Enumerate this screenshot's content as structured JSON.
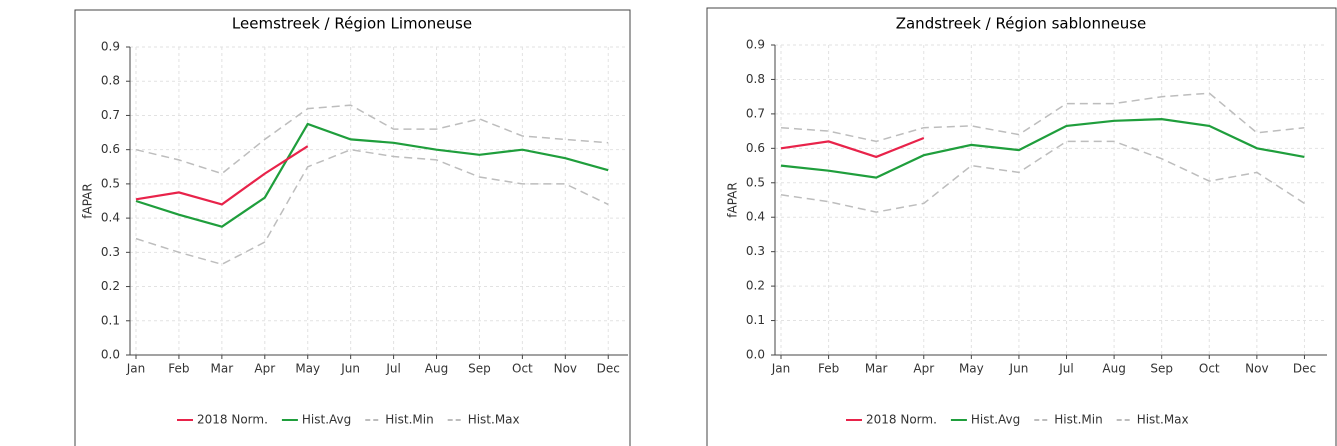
{
  "chart_data": [
    {
      "type": "line",
      "title": "Leemstreek / Région Limoneuse",
      "y_label": "fAPAR",
      "categories": [
        "Jan",
        "Feb",
        "Mar",
        "Apr",
        "May",
        "Jun",
        "Jul",
        "Aug",
        "Sep",
        "Oct",
        "Nov",
        "Dec"
      ],
      "ylim": [
        0,
        0.9
      ],
      "yticks": [
        {
          "value": 0,
          "label": "0.0"
        },
        0.1,
        0.2,
        0.3,
        0.4,
        0.5,
        0.6,
        0.7,
        0.8,
        0.9
      ],
      "grid": true,
      "series": [
        {
          "name": "2018 Norm.",
          "color": "#e8234a",
          "dash": false,
          "values": [
            0.455,
            0.475,
            0.44,
            0.53,
            0.61,
            null,
            null,
            null,
            null,
            null,
            null,
            null
          ]
        },
        {
          "name": "Hist.Avg",
          "color": "#1f9e3c",
          "dash": false,
          "values": [
            0.45,
            0.41,
            0.375,
            0.46,
            0.675,
            0.63,
            0.62,
            0.6,
            0.585,
            0.6,
            0.575,
            0.54
          ]
        },
        {
          "name": "Hist.Min",
          "color": "#bdbdbd",
          "dash": true,
          "values": [
            0.34,
            0.3,
            0.265,
            0.33,
            0.55,
            0.6,
            0.58,
            0.57,
            0.52,
            0.5,
            0.5,
            0.44
          ]
        },
        {
          "name": "Hist.Max",
          "color": "#bdbdbd",
          "dash": true,
          "values": [
            0.6,
            0.57,
            0.53,
            0.63,
            0.72,
            0.73,
            0.66,
            0.66,
            0.69,
            0.64,
            0.63,
            0.62
          ]
        }
      ]
    },
    {
      "type": "line",
      "title": "Zandstreek / Région sablonneuse",
      "y_label": "fAPAR",
      "categories": [
        "Jan",
        "Feb",
        "Mar",
        "Apr",
        "May",
        "Jun",
        "Jul",
        "Aug",
        "Sep",
        "Oct",
        "Nov",
        "Dec"
      ],
      "ylim": [
        0,
        0.9
      ],
      "yticks": [
        {
          "value": 0,
          "label": "0.0"
        },
        0.1,
        0.2,
        0.3,
        0.4,
        0.5,
        0.6,
        0.7,
        0.8,
        0.9
      ],
      "grid": true,
      "series": [
        {
          "name": "2018 Norm.",
          "color": "#e8234a",
          "dash": false,
          "values": [
            0.6,
            0.62,
            0.575,
            0.63,
            null,
            null,
            null,
            null,
            null,
            null,
            null,
            null
          ]
        },
        {
          "name": "Hist.Avg",
          "color": "#1f9e3c",
          "dash": false,
          "values": [
            0.55,
            0.535,
            0.515,
            0.58,
            0.61,
            0.595,
            0.665,
            0.68,
            0.685,
            0.665,
            0.6,
            0.575
          ]
        },
        {
          "name": "Hist.Min",
          "color": "#bdbdbd",
          "dash": true,
          "values": [
            0.465,
            0.445,
            0.415,
            0.44,
            0.55,
            0.53,
            0.62,
            0.62,
            0.57,
            0.505,
            0.53,
            0.44
          ]
        },
        {
          "name": "Hist.Max",
          "color": "#bdbdbd",
          "dash": true,
          "values": [
            0.66,
            0.65,
            0.62,
            0.66,
            0.665,
            0.64,
            0.73,
            0.73,
            0.75,
            0.76,
            0.645,
            0.66
          ]
        }
      ]
    }
  ]
}
